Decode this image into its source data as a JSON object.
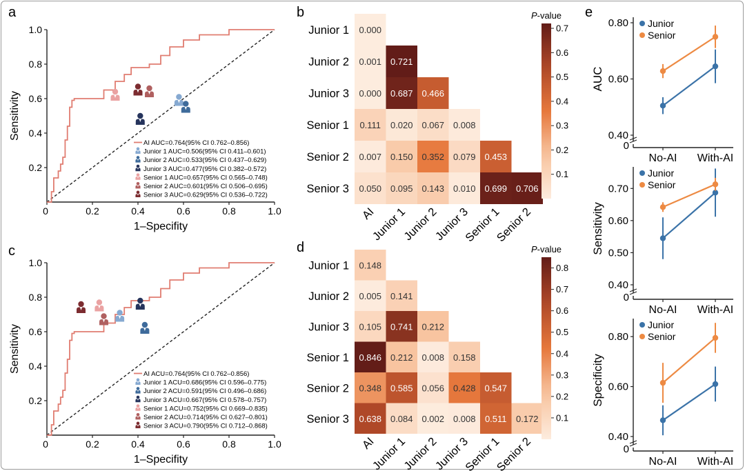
{
  "colors": {
    "ai_curve": "#e07c70",
    "junior": "#3b73a8",
    "senior": "#ed8a43",
    "junior1": "#86a9d1",
    "junior2": "#3e6b9b",
    "junior3": "#26345c",
    "senior1": "#eaa2a2",
    "senior2": "#b06060",
    "senior3": "#7c2c30"
  },
  "panels": {
    "a": {
      "letter": "a",
      "chart_data": {
        "type": "line",
        "xlabel": "1–Specifity",
        "ylabel": "Sensitivity",
        "xlim": [
          0,
          1
        ],
        "ylim": [
          0,
          1
        ],
        "xticks": [
          "0",
          "0.2",
          "0.4",
          "0.6",
          "0.8",
          "1.0"
        ],
        "yticks": [
          "0.2",
          "0.4",
          "0.6",
          "0.8",
          "1.0"
        ],
        "roc": [
          [
            0,
            0
          ],
          [
            0.02,
            0
          ],
          [
            0.02,
            0.06
          ],
          [
            0.03,
            0.06
          ],
          [
            0.03,
            0.14
          ],
          [
            0.05,
            0.14
          ],
          [
            0.05,
            0.18
          ],
          [
            0.06,
            0.18
          ],
          [
            0.06,
            0.22
          ],
          [
            0.07,
            0.22
          ],
          [
            0.07,
            0.26
          ],
          [
            0.08,
            0.26
          ],
          [
            0.08,
            0.36
          ],
          [
            0.09,
            0.36
          ],
          [
            0.09,
            0.44
          ],
          [
            0.1,
            0.44
          ],
          [
            0.1,
            0.55
          ],
          [
            0.11,
            0.55
          ],
          [
            0.11,
            0.59
          ],
          [
            0.12,
            0.59
          ],
          [
            0.12,
            0.6
          ],
          [
            0.25,
            0.6
          ],
          [
            0.25,
            0.65
          ],
          [
            0.3,
            0.65
          ],
          [
            0.3,
            0.7
          ],
          [
            0.34,
            0.7
          ],
          [
            0.34,
            0.74
          ],
          [
            0.37,
            0.74
          ],
          [
            0.37,
            0.78
          ],
          [
            0.45,
            0.78
          ],
          [
            0.45,
            0.8
          ],
          [
            0.5,
            0.8
          ],
          [
            0.5,
            0.85
          ],
          [
            0.54,
            0.85
          ],
          [
            0.54,
            0.9
          ],
          [
            0.6,
            0.9
          ],
          [
            0.6,
            0.94
          ],
          [
            0.67,
            0.94
          ],
          [
            0.67,
            0.97
          ],
          [
            0.8,
            0.97
          ],
          [
            0.8,
            1
          ],
          [
            1,
            1
          ]
        ],
        "readers": [
          {
            "key": "senior1",
            "x": 0.3,
            "y": 0.62
          },
          {
            "key": "senior3",
            "x": 0.4,
            "y": 0.65
          },
          {
            "key": "senior2",
            "x": 0.45,
            "y": 0.64
          },
          {
            "key": "junior3",
            "x": 0.41,
            "y": 0.48
          },
          {
            "key": "junior1",
            "x": 0.58,
            "y": 0.59
          },
          {
            "key": "junior2",
            "x": 0.61,
            "y": 0.55
          }
        ],
        "legend": [
          {
            "key": "ai",
            "label": "AI AUC=0.764(95% CI 0.762–0.856)"
          },
          {
            "key": "junior1",
            "label": "Junior 1 AUC=0.506(95% CI 0.411–0.601)"
          },
          {
            "key": "junior2",
            "label": "Junior 2 AUC=0.533(95% CI 0.437–0.629)"
          },
          {
            "key": "junior3",
            "label": "Junior 3 AUC=0.477(95% CI 0.382–0.572)"
          },
          {
            "key": "senior1",
            "label": "Senior 1 AUC=0.657(95% CI 0.565–0.748)"
          },
          {
            "key": "senior2",
            "label": "Senior 2 AUC=0.601(95% CI 0.506–0.695)"
          },
          {
            "key": "senior3",
            "label": "Senior 3 AUC=0.629(95% CI 0.536–0.722)"
          }
        ]
      }
    },
    "c": {
      "letter": "c",
      "chart_data": {
        "type": "line",
        "xlabel": "1–Specifity",
        "ylabel": "Sensitivity",
        "xlim": [
          0,
          1
        ],
        "ylim": [
          0,
          1
        ],
        "xticks": [
          "0",
          "0.2",
          "0.4",
          "0.6",
          "0.8",
          "1.0"
        ],
        "yticks": [
          "0.2",
          "0.4",
          "0.6",
          "0.8",
          "1.0"
        ],
        "roc": [
          [
            0,
            0
          ],
          [
            0.02,
            0
          ],
          [
            0.02,
            0.06
          ],
          [
            0.03,
            0.06
          ],
          [
            0.03,
            0.14
          ],
          [
            0.05,
            0.14
          ],
          [
            0.05,
            0.18
          ],
          [
            0.06,
            0.18
          ],
          [
            0.06,
            0.22
          ],
          [
            0.07,
            0.22
          ],
          [
            0.07,
            0.26
          ],
          [
            0.08,
            0.26
          ],
          [
            0.08,
            0.36
          ],
          [
            0.09,
            0.36
          ],
          [
            0.09,
            0.44
          ],
          [
            0.1,
            0.44
          ],
          [
            0.1,
            0.55
          ],
          [
            0.11,
            0.55
          ],
          [
            0.11,
            0.59
          ],
          [
            0.12,
            0.59
          ],
          [
            0.12,
            0.6
          ],
          [
            0.25,
            0.6
          ],
          [
            0.25,
            0.65
          ],
          [
            0.3,
            0.65
          ],
          [
            0.3,
            0.7
          ],
          [
            0.34,
            0.7
          ],
          [
            0.34,
            0.74
          ],
          [
            0.37,
            0.74
          ],
          [
            0.37,
            0.78
          ],
          [
            0.45,
            0.78
          ],
          [
            0.45,
            0.8
          ],
          [
            0.5,
            0.8
          ],
          [
            0.5,
            0.85
          ],
          [
            0.54,
            0.85
          ],
          [
            0.54,
            0.9
          ],
          [
            0.6,
            0.9
          ],
          [
            0.6,
            0.94
          ],
          [
            0.67,
            0.94
          ],
          [
            0.67,
            0.97
          ],
          [
            0.8,
            0.97
          ],
          [
            0.8,
            1
          ],
          [
            1,
            1
          ]
        ],
        "readers": [
          {
            "key": "senior3",
            "x": 0.15,
            "y": 0.74
          },
          {
            "key": "senior1",
            "x": 0.23,
            "y": 0.75
          },
          {
            "key": "senior2",
            "x": 0.25,
            "y": 0.67
          },
          {
            "key": "junior1",
            "x": 0.32,
            "y": 0.69
          },
          {
            "key": "junior3",
            "x": 0.41,
            "y": 0.76
          },
          {
            "key": "junior2",
            "x": 0.43,
            "y": 0.62
          }
        ],
        "legend": [
          {
            "key": "ai",
            "label": "AI ACU=0.764(95% CI 0.762–0.856)"
          },
          {
            "key": "junior1",
            "label": "Junior 1 ACU=0.686(95% CI 0.596–0.775)"
          },
          {
            "key": "junior2",
            "label": "Junior 2 ACU=0.591(95% CI 0.496–0.686)"
          },
          {
            "key": "junior3",
            "label": "Junior 3 ACU=0.667(95% CI 0.578–0.757)"
          },
          {
            "key": "senior1",
            "label": "Senior 1 ACU=0.752(95% CI 0.669–0.835)"
          },
          {
            "key": "senior2",
            "label": "Senior 2 ACU=0.714(95% CI 0.627–0.801)"
          },
          {
            "key": "senior3",
            "label": "Senior 3 ACU=0.790(95% CI 0.712–0.868)"
          }
        ]
      }
    },
    "b": {
      "letter": "b",
      "chart_data": {
        "type": "heatmap",
        "rows": [
          "Junior 1",
          "Junior 2",
          "Junior 3",
          "Senior 1",
          "Senior 2",
          "Senior 3"
        ],
        "cols": [
          "AI",
          "Junior 1",
          "Junior 2",
          "Junior 3",
          "Senior 1",
          "Senior 2"
        ],
        "values": [
          [
            0.0
          ],
          [
            0.001,
            0.721
          ],
          [
            0.0,
            0.687,
            0.466
          ],
          [
            0.111,
            0.02,
            0.067,
            0.008
          ],
          [
            0.007,
            0.15,
            0.352,
            0.079,
            0.453
          ],
          [
            0.05,
            0.095,
            0.143,
            0.01,
            0.699,
            0.706
          ]
        ],
        "labels": [
          [
            "0.000"
          ],
          [
            "0.001",
            "0.721"
          ],
          [
            "0.000",
            "0.687",
            "0.466"
          ],
          [
            "0.111",
            "0.020",
            "0.067",
            "0.008"
          ],
          [
            "0.007",
            "0.150",
            "0.352",
            "0.079",
            "0.453"
          ],
          [
            "0.050",
            "0.095",
            "0.143",
            "0.010",
            "0.699",
            "0.706"
          ]
        ],
        "colorbar": {
          "title_italic": "P",
          "title_rest": "-value",
          "min": 0,
          "max": 0.72,
          "ticks": [
            "0.1",
            "0.2",
            "0.3",
            "0.4",
            "0.5",
            "0.6",
            "0.7"
          ]
        }
      }
    },
    "d": {
      "letter": "d",
      "chart_data": {
        "type": "heatmap",
        "rows": [
          "Junior 1",
          "Junior 2",
          "Junior 3",
          "Senior 1",
          "Senior 2",
          "Senior 3"
        ],
        "cols": [
          "AI",
          "Junior 1",
          "Junior 2",
          "Junior 3",
          "Senior 1",
          "Senior 2"
        ],
        "values": [
          [
            0.148
          ],
          [
            0.005,
            0.141
          ],
          [
            0.105,
            0.741,
            0.212
          ],
          [
            0.846,
            0.212,
            0.008,
            0.158
          ],
          [
            0.348,
            0.585,
            0.056,
            0.428,
            0.547
          ],
          [
            0.638,
            0.084,
            0.002,
            0.008,
            0.511,
            0.172
          ]
        ],
        "labels": [
          [
            "0.148"
          ],
          [
            "0.005",
            "0.141"
          ],
          [
            "0.105",
            "0.741",
            "0.212"
          ],
          [
            "0.846",
            "0.212",
            "0.008",
            "0.158"
          ],
          [
            "0.348",
            "0.585",
            "0.056",
            "0.428",
            "0.547"
          ],
          [
            "0.638",
            "0.084",
            "0.002",
            "0.008",
            "0.511",
            "0.172"
          ]
        ],
        "colorbar": {
          "title_italic": "P",
          "title_rest": "-value",
          "min": 0,
          "max": 0.85,
          "ticks": [
            "0.1",
            "0.2",
            "0.3",
            "0.4",
            "0.5",
            "0.6",
            "0.7",
            "0.8"
          ]
        }
      }
    },
    "e": {
      "letter": "e",
      "legend": {
        "junior": "Junior",
        "senior": "Senior"
      },
      "charts": [
        {
          "type": "line",
          "ylabel": "AUC",
          "categories": [
            "No-AI",
            "With-AI"
          ],
          "yticks": [
            0.4,
            0.6,
            0.8
          ],
          "yticklabels": [
            "0.40",
            "0.60",
            "0.80"
          ],
          "ylim": [
            0.4,
            0.8
          ],
          "zero_label": "0",
          "series": [
            {
              "name": "Junior",
              "key": "junior",
              "values": [
                0.505,
                0.645
              ],
              "err": [
                0.03,
                0.06
              ]
            },
            {
              "name": "Senior",
              "key": "senior",
              "values": [
                0.628,
                0.75
              ],
              "err": [
                0.025,
                0.04
              ]
            }
          ]
        },
        {
          "type": "line",
          "ylabel": "Sensitivity",
          "categories": [
            "No-AI",
            "With-AI"
          ],
          "yticks": [
            0.4,
            0.5,
            0.6,
            0.7
          ],
          "yticklabels": [
            "0.40",
            "0.50",
            "0.60",
            "0.70"
          ],
          "ylim": [
            0.4,
            0.75
          ],
          "zero_label": "0",
          "series": [
            {
              "name": "Junior",
              "key": "junior",
              "values": [
                0.545,
                0.687
              ],
              "err": [
                0.065,
                0.075
              ]
            },
            {
              "name": "Senior",
              "key": "senior",
              "values": [
                0.642,
                0.713
              ],
              "err": [
                0.015,
                0.02
              ]
            }
          ]
        },
        {
          "type": "line",
          "ylabel": "Specificity",
          "categories": [
            "No-AI",
            "With-AI"
          ],
          "yticks": [
            0.4,
            0.6,
            0.8
          ],
          "yticklabels": [
            "0.40",
            "0.60",
            "0.80"
          ],
          "ylim": [
            0.4,
            0.85
          ],
          "zero_label": "0",
          "series": [
            {
              "name": "Junior",
              "key": "junior",
              "values": [
                0.465,
                0.61
              ],
              "err": [
                0.06,
                0.07
              ]
            },
            {
              "name": "Senior",
              "key": "senior",
              "values": [
                0.615,
                0.795
              ],
              "err": [
                0.08,
                0.06
              ]
            }
          ]
        }
      ]
    }
  }
}
